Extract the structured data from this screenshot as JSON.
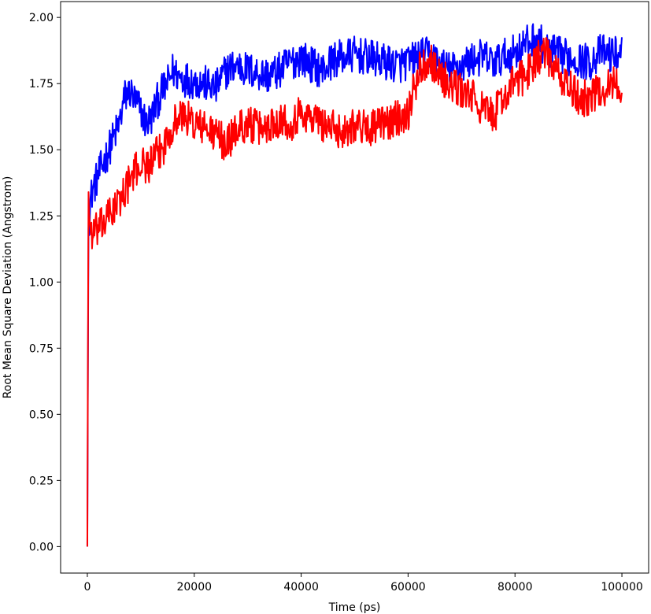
{
  "chart_data": {
    "type": "line",
    "title": "",
    "xlabel": "Time (ps)",
    "ylabel": "Root Mean Square Deviation (Angstrom)",
    "xlim": [
      -5000,
      105000
    ],
    "ylim": [
      -0.1,
      2.06
    ],
    "xticks": [
      0,
      20000,
      40000,
      60000,
      80000,
      100000
    ],
    "xtick_labels": [
      "0",
      "20000",
      "40000",
      "60000",
      "80000",
      "100000"
    ],
    "yticks": [
      0.0,
      0.25,
      0.5,
      0.75,
      1.0,
      1.25,
      1.5,
      1.75,
      2.0
    ],
    "ytick_labels": [
      "0.00",
      "0.25",
      "0.50",
      "0.75",
      "1.00",
      "1.25",
      "1.50",
      "1.75",
      "2.00"
    ],
    "grid": false,
    "legend": "none",
    "series": [
      {
        "color": "#0000ff",
        "x": [
          0,
          200,
          500,
          1000,
          2000,
          3000,
          4000,
          5000,
          6000,
          7000,
          8000,
          9000,
          10000,
          11000,
          12000,
          13000,
          14000,
          15000,
          16000,
          17000,
          18000,
          20000,
          22000,
          24000,
          26000,
          28000,
          30000,
          32000,
          34000,
          36000,
          38000,
          40000,
          42000,
          44000,
          46000,
          48000,
          50000,
          52000,
          54000,
          56000,
          58000,
          60000,
          62000,
          64000,
          66000,
          68000,
          70000,
          72000,
          74000,
          76000,
          78000,
          80000,
          82000,
          84000,
          86000,
          88000,
          90000,
          92000,
          94000,
          96000,
          98000,
          100000
        ],
        "y": [
          0.0,
          1.2,
          1.3,
          1.35,
          1.4,
          1.45,
          1.5,
          1.55,
          1.6,
          1.7,
          1.72,
          1.68,
          1.65,
          1.6,
          1.62,
          1.68,
          1.72,
          1.75,
          1.8,
          1.78,
          1.77,
          1.76,
          1.75,
          1.73,
          1.8,
          1.82,
          1.8,
          1.79,
          1.78,
          1.8,
          1.83,
          1.85,
          1.82,
          1.8,
          1.84,
          1.85,
          1.86,
          1.85,
          1.84,
          1.83,
          1.82,
          1.83,
          1.85,
          1.86,
          1.82,
          1.8,
          1.82,
          1.84,
          1.85,
          1.83,
          1.85,
          1.87,
          1.9,
          1.92,
          1.88,
          1.86,
          1.85,
          1.84,
          1.83,
          1.87,
          1.86,
          1.87
        ]
      },
      {
        "color": "#ff0000",
        "x": [
          0,
          200,
          500,
          1000,
          2000,
          3000,
          4000,
          5000,
          6000,
          7000,
          8000,
          9000,
          10000,
          11000,
          12000,
          13000,
          14000,
          15000,
          16000,
          17000,
          18000,
          20000,
          22000,
          24000,
          26000,
          28000,
          30000,
          32000,
          34000,
          36000,
          38000,
          40000,
          42000,
          44000,
          46000,
          48000,
          50000,
          52000,
          54000,
          56000,
          58000,
          60000,
          62000,
          64000,
          66000,
          68000,
          70000,
          72000,
          74000,
          76000,
          78000,
          80000,
          82000,
          84000,
          86000,
          88000,
          90000,
          92000,
          94000,
          96000,
          98000,
          100000
        ],
        "y": [
          0.0,
          1.35,
          1.2,
          1.18,
          1.2,
          1.22,
          1.25,
          1.28,
          1.3,
          1.35,
          1.38,
          1.42,
          1.45,
          1.44,
          1.45,
          1.48,
          1.5,
          1.55,
          1.6,
          1.62,
          1.63,
          1.6,
          1.58,
          1.56,
          1.52,
          1.58,
          1.6,
          1.58,
          1.59,
          1.62,
          1.6,
          1.64,
          1.62,
          1.6,
          1.58,
          1.57,
          1.6,
          1.58,
          1.59,
          1.6,
          1.62,
          1.64,
          1.8,
          1.85,
          1.78,
          1.74,
          1.72,
          1.7,
          1.65,
          1.63,
          1.7,
          1.76,
          1.78,
          1.85,
          1.86,
          1.78,
          1.74,
          1.69,
          1.7,
          1.72,
          1.75,
          1.74
        ]
      }
    ]
  }
}
